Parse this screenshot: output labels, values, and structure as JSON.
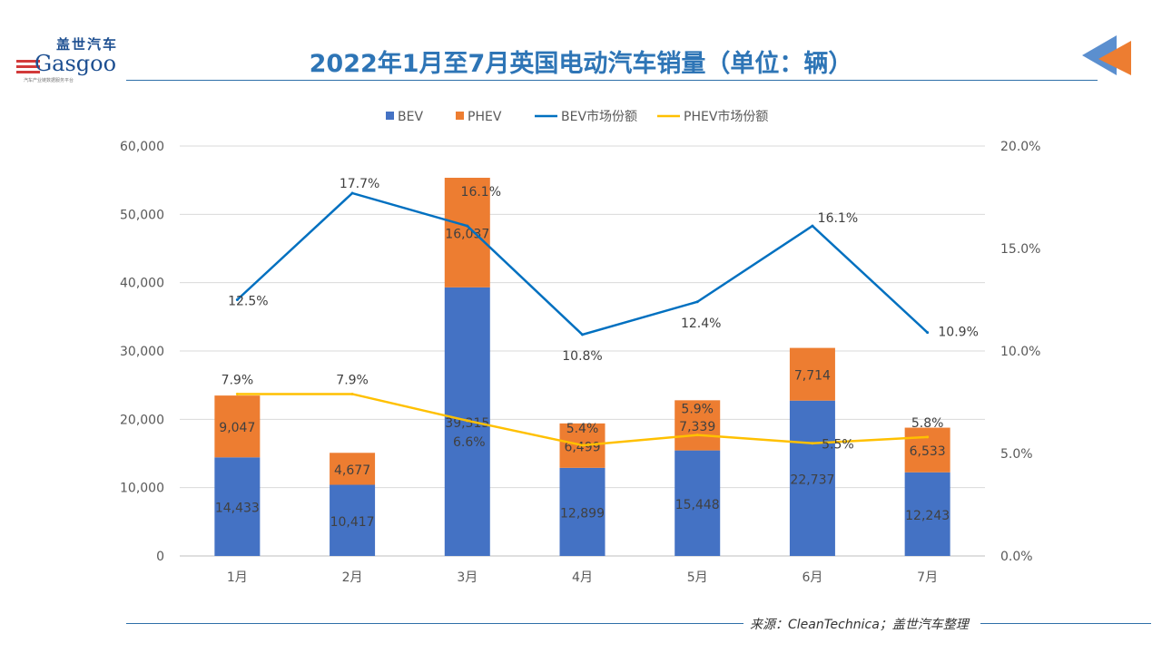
{
  "header": {
    "title": "2022年1月至7月英国电动汽车销量（单位：辆）",
    "logo_text": "盖世汽车 Gasgoo",
    "logo_subtitle": "汽车产业链数据服务平台"
  },
  "footer": {
    "source": "来源：CleanTechnica；盖世汽车整理"
  },
  "watermark": "盖世汽车 Gasgoo",
  "colors": {
    "bev": "#4472c4",
    "phev": "#ed7d31",
    "bev_share": "#0070c0",
    "phev_share": "#ffc000",
    "title": "#2e75b6"
  },
  "chart_data": {
    "type": "bar",
    "stacked": true,
    "title": "2022年1月至7月英国电动汽车销量（单位：辆）",
    "categories": [
      "1月",
      "2月",
      "3月",
      "4月",
      "5月",
      "6月",
      "7月"
    ],
    "series": [
      {
        "name": "BEV",
        "type": "bar",
        "axis": "left",
        "values": [
          14433,
          10417,
          39315,
          12899,
          15448,
          22737,
          12243
        ],
        "labels": [
          "14,433",
          "10,417",
          "39,315",
          "12,899",
          "15,448",
          "22,737",
          "12,243"
        ]
      },
      {
        "name": "PHEV",
        "type": "bar",
        "axis": "left",
        "values": [
          9047,
          4677,
          16037,
          6499,
          7339,
          7714,
          6533
        ],
        "labels": [
          "9,047",
          "4,677",
          "16,037",
          "6,499",
          "7,339",
          "7,714",
          "6,533"
        ]
      },
      {
        "name": "BEV市场份额",
        "type": "line",
        "axis": "right",
        "values": [
          12.5,
          17.7,
          16.1,
          10.8,
          12.4,
          16.1,
          10.9
        ],
        "labels": [
          "12.5%",
          "17.7%",
          "16.1%",
          "10.8%",
          "12.4%",
          "16.1%",
          "10.9%"
        ]
      },
      {
        "name": "PHEV市场份额",
        "type": "line",
        "axis": "right",
        "values": [
          7.9,
          7.9,
          6.6,
          5.4,
          5.9,
          5.5,
          5.8
        ],
        "labels": [
          "7.9%",
          "7.9%",
          "6.6%",
          "5.4%",
          "5.9%",
          "5.5%",
          "5.8%"
        ]
      }
    ],
    "left_axis": {
      "range": [
        0,
        60000
      ],
      "ticks": [
        "0",
        "10,000",
        "20,000",
        "30,000",
        "40,000",
        "50,000",
        "60,000"
      ]
    },
    "right_axis": {
      "range": [
        0,
        20
      ],
      "ticks": [
        "0.0%",
        "5.0%",
        "10.0%",
        "15.0%",
        "20.0%"
      ]
    },
    "grid": true,
    "legend": "top"
  }
}
